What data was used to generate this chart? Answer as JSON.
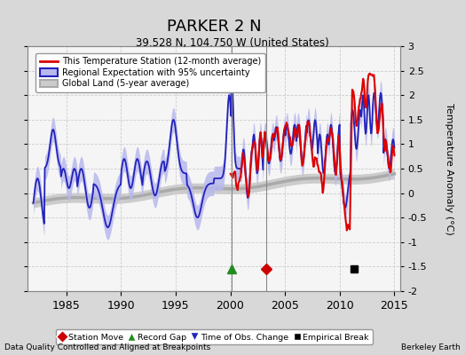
{
  "title": "PARKER 2 N",
  "subtitle": "39.528 N, 104.750 W (United States)",
  "ylabel": "Temperature Anomaly (°C)",
  "xlabel_left": "Data Quality Controlled and Aligned at Breakpoints",
  "xlabel_right": "Berkeley Earth",
  "ylim": [
    -2.0,
    3.0
  ],
  "xlim": [
    1981.5,
    2015.5
  ],
  "yticks": [
    -2,
    -1.5,
    -1,
    -0.5,
    0,
    0.5,
    1,
    1.5,
    2,
    2.5,
    3
  ],
  "xticks": [
    1985,
    1990,
    1995,
    2000,
    2005,
    2010,
    2015
  ],
  "bg_color": "#d8d8d8",
  "plot_bg_color": "#f5f5f5",
  "station_color": "#dd0000",
  "regional_color": "#2222bb",
  "regional_fill_color": "#b8b8ee",
  "global_color": "#aaaaaa",
  "global_fill_color": "#cccccc",
  "vline_color": "#888888",
  "record_gap_x": 2000.1,
  "obs_change_x": 2003.3,
  "empirical_break_x": 2011.3,
  "station_start_year": 2000.0,
  "seed": 12345
}
